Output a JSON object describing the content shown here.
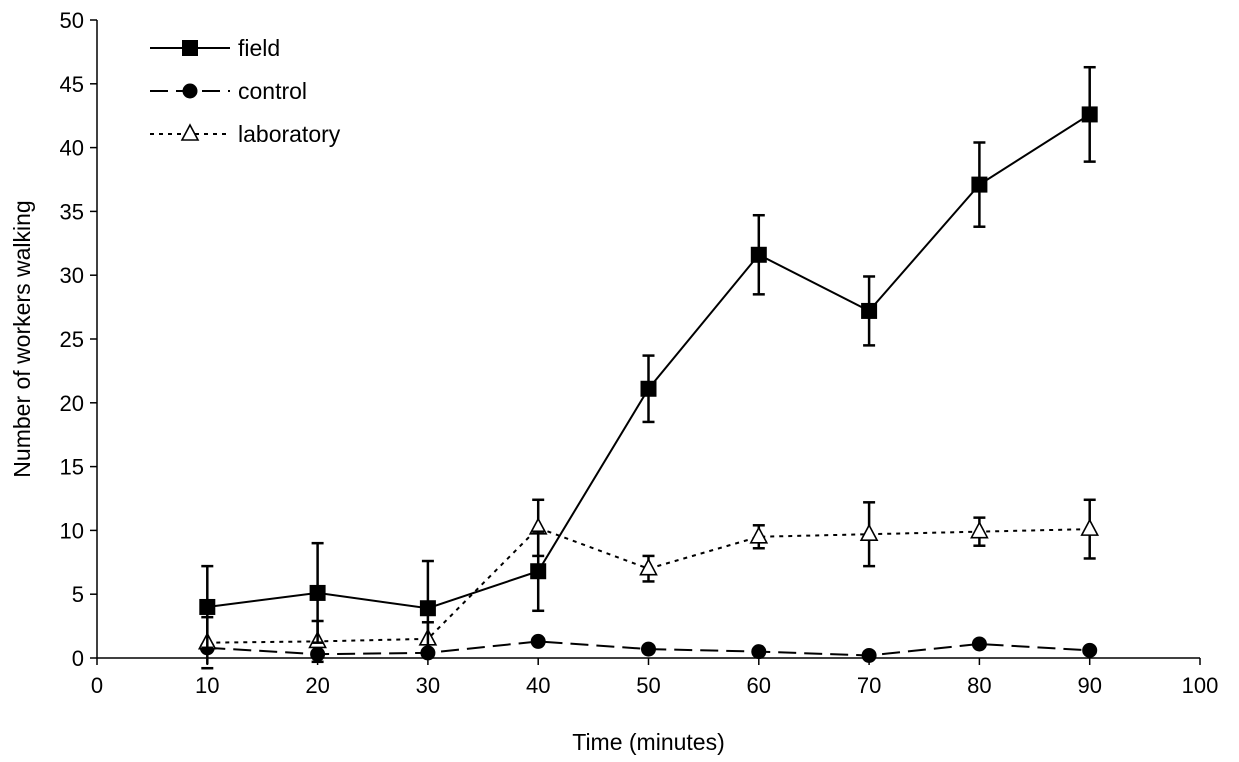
{
  "chart_data": {
    "type": "line",
    "title": "",
    "xlabel": "Time (minutes)",
    "ylabel": "Number of workers walking",
    "xlim": [
      0,
      100
    ],
    "ylim": [
      0,
      50
    ],
    "xticks": [
      0,
      10,
      20,
      30,
      40,
      50,
      60,
      70,
      80,
      90,
      100
    ],
    "yticks": [
      0,
      5,
      10,
      15,
      20,
      25,
      30,
      35,
      40,
      45,
      50
    ],
    "grid": false,
    "legend_position": "top-left",
    "x": [
      10,
      20,
      30,
      40,
      50,
      60,
      70,
      80,
      90
    ],
    "series": [
      {
        "name": "field",
        "line_style": "solid",
        "marker": "filled-square",
        "color": "#000000",
        "values": [
          4.0,
          5.1,
          3.9,
          6.8,
          21.1,
          31.6,
          27.2,
          37.1,
          42.6
        ],
        "error": [
          3.2,
          3.9,
          3.7,
          3.1,
          2.6,
          3.1,
          2.7,
          3.3,
          3.7
        ]
      },
      {
        "name": "control",
        "line_style": "dashed",
        "marker": "filled-circle",
        "color": "#000000",
        "values": [
          0.8,
          0.3,
          0.4,
          1.3,
          0.7,
          0.5,
          0.2,
          1.1,
          0.6
        ],
        "error": [
          0,
          0,
          0,
          0,
          0,
          0,
          0,
          0,
          0
        ]
      },
      {
        "name": "laboratory",
        "line_style": "dotted",
        "marker": "open-triangle",
        "color": "#000000",
        "values": [
          1.2,
          1.3,
          1.5,
          10.2,
          7.0,
          9.5,
          9.7,
          9.9,
          10.1
        ],
        "error": [
          2.0,
          1.6,
          1.3,
          2.2,
          1.0,
          0.9,
          2.5,
          1.1,
          2.3
        ]
      }
    ]
  }
}
